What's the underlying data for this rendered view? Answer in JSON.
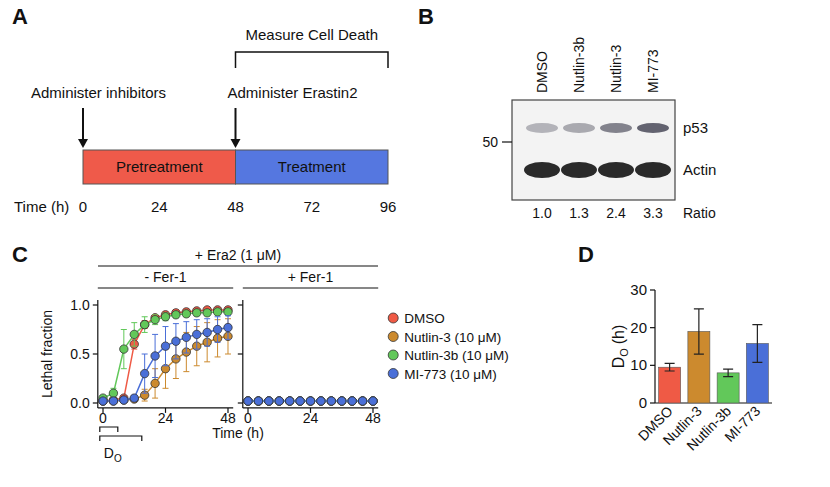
{
  "panel_labels": [
    "A",
    "B",
    "C",
    "D"
  ],
  "panel_a": {
    "x_label": "Time (h)",
    "xlim": [
      0,
      96
    ],
    "xticks": [
      0,
      24,
      48,
      72,
      96
    ],
    "phases": [
      {
        "label": "Pretreatment",
        "start": 0,
        "end": 48,
        "color": "#ef5a4a"
      },
      {
        "label": "Treatment",
        "start": 48,
        "end": 96,
        "color": "#5577e0"
      }
    ],
    "events": [
      {
        "label": "Administer inhibitors",
        "time": 0
      },
      {
        "label": "Administer Erastin2",
        "time": 48
      }
    ],
    "bracket": {
      "label": "Measure Cell Death",
      "start": 48,
      "end": 96
    }
  },
  "panel_b": {
    "lanes": [
      "DMSO",
      "Nutlin-3b",
      "Nutlin-3",
      "MI-773"
    ],
    "marker": "50",
    "bands": [
      "p53",
      "Actin"
    ],
    "ratio_label": "Ratio",
    "ratios": [
      {
        "value": 1.0,
        "label": "1.0"
      },
      {
        "value": 1.3,
        "label": "1.3"
      },
      {
        "value": 2.4,
        "label": "2.4"
      },
      {
        "value": 3.3,
        "label": "3.3"
      }
    ]
  },
  "panel_c_header": "+ Era2 (1 μM)",
  "chart_data": [
    {
      "type": "line",
      "title": "- Fer-1",
      "x_label": "Time (h)",
      "y_label": "Lethal fraction",
      "annotation": "D",
      "annotation_subscript": "O",
      "x": [
        0,
        4,
        8,
        12,
        16,
        20,
        24,
        28,
        32,
        36,
        40,
        44,
        48
      ],
      "xlim": [
        -2,
        50
      ],
      "xticks": [
        0,
        24,
        48
      ],
      "ylim": [
        -0.05,
        1.05
      ],
      "yticks": [
        {
          "value": 0,
          "label": "0.0"
        },
        {
          "value": 0.5,
          "label": "0.5"
        },
        {
          "value": 1,
          "label": "1.0"
        }
      ],
      "marker": "circle",
      "series": [
        {
          "color": "#ef5a45",
          "values": [
            0.02,
            0.03,
            0.05,
            0.6,
            0.8,
            0.87,
            0.9,
            0.92,
            0.93,
            0.94,
            0.95,
            0.95,
            0.95
          ],
          "errors": [
            0.01,
            0.01,
            0.02,
            0.05,
            0.04,
            0.03,
            0.03,
            0.03,
            0.03,
            0.02,
            0.02,
            0.02,
            0.02
          ]
        },
        {
          "color": "#cc8a2e",
          "values": [
            0.02,
            0.02,
            0.03,
            0.04,
            0.08,
            0.2,
            0.35,
            0.45,
            0.52,
            0.58,
            0.62,
            0.66,
            0.68
          ],
          "errors": [
            0.01,
            0.01,
            0.01,
            0.02,
            0.06,
            0.15,
            0.2,
            0.2,
            0.2,
            0.2,
            0.2,
            0.19,
            0.18
          ]
        },
        {
          "color": "#62c85a",
          "values": [
            0.05,
            0.1,
            0.55,
            0.7,
            0.8,
            0.85,
            0.88,
            0.9,
            0.91,
            0.92,
            0.92,
            0.93,
            0.93
          ],
          "errors": [
            0.02,
            0.05,
            0.2,
            0.12,
            0.08,
            0.05,
            0.04,
            0.03,
            0.03,
            0.03,
            0.03,
            0.03,
            0.03
          ]
        },
        {
          "color": "#4a6fd8",
          "values": [
            0.02,
            0.02,
            0.03,
            0.05,
            0.3,
            0.48,
            0.58,
            0.63,
            0.67,
            0.7,
            0.72,
            0.75,
            0.77
          ],
          "errors": [
            0.01,
            0.01,
            0.01,
            0.03,
            0.2,
            0.22,
            0.2,
            0.18,
            0.16,
            0.15,
            0.14,
            0.13,
            0.12
          ]
        }
      ]
    },
    {
      "type": "line",
      "title": "+ Fer-1",
      "x": [
        0,
        4,
        8,
        12,
        16,
        20,
        24,
        28,
        32,
        36,
        40,
        44,
        48
      ],
      "xlim": [
        -2,
        50
      ],
      "xticks": [
        0,
        24,
        48
      ],
      "ylim": [
        -0.05,
        1.05
      ],
      "yticks": [
        0,
        0.5,
        1
      ],
      "tick_labels": "x",
      "marker": "circle",
      "legend": "right",
      "series": [
        {
          "name": "DMSO",
          "color": "#ef5a45",
          "values": [
            0.02,
            0.02,
            0.02,
            0.02,
            0.02,
            0.02,
            0.02,
            0.02,
            0.02,
            0.02,
            0.02,
            0.02,
            0.02
          ],
          "errors": [
            0.01,
            0.01,
            0.01,
            0.01,
            0.01,
            0.01,
            0.01,
            0.01,
            0.01,
            0.01,
            0.01,
            0.01,
            0.01
          ]
        },
        {
          "name": "Nutlin-3 (10 μM)",
          "color": "#cc8a2e",
          "values": [
            0.02,
            0.02,
            0.02,
            0.02,
            0.02,
            0.02,
            0.02,
            0.02,
            0.02,
            0.02,
            0.02,
            0.02,
            0.02
          ],
          "errors": [
            0.01,
            0.01,
            0.01,
            0.01,
            0.01,
            0.01,
            0.01,
            0.01,
            0.01,
            0.01,
            0.01,
            0.01,
            0.01
          ]
        },
        {
          "name": "Nutlin-3b (10 μM)",
          "color": "#62c85a",
          "values": [
            0.02,
            0.02,
            0.02,
            0.02,
            0.02,
            0.02,
            0.02,
            0.02,
            0.02,
            0.02,
            0.02,
            0.02,
            0.02
          ],
          "errors": [
            0.01,
            0.01,
            0.01,
            0.01,
            0.01,
            0.01,
            0.01,
            0.01,
            0.01,
            0.01,
            0.01,
            0.01,
            0.01
          ]
        },
        {
          "name": "MI-773 (10 μM)",
          "color": "#4a6fd8",
          "values": [
            0.02,
            0.02,
            0.02,
            0.02,
            0.02,
            0.02,
            0.02,
            0.02,
            0.02,
            0.02,
            0.02,
            0.02,
            0.02
          ],
          "errors": [
            0.01,
            0.01,
            0.01,
            0.01,
            0.01,
            0.01,
            0.01,
            0.01,
            0.01,
            0.01,
            0.01,
            0.01,
            0.01
          ]
        }
      ]
    },
    {
      "type": "bar",
      "y_label": "D",
      "y_label_subscript": "O",
      "y_label_unit": "(h)",
      "categories": [
        "DMSO",
        "Nutlin-3",
        "Nutlin-3b",
        "MI-773"
      ],
      "values": [
        9.5,
        19,
        8,
        15.8
      ],
      "errors": [
        1,
        6,
        1,
        5
      ],
      "colors": [
        "#ef5a45",
        "#cc8a2e",
        "#62c85a",
        "#4a6fd8"
      ],
      "ylim": [
        0,
        30
      ],
      "yticks": [
        0,
        10,
        20,
        30
      ]
    }
  ]
}
